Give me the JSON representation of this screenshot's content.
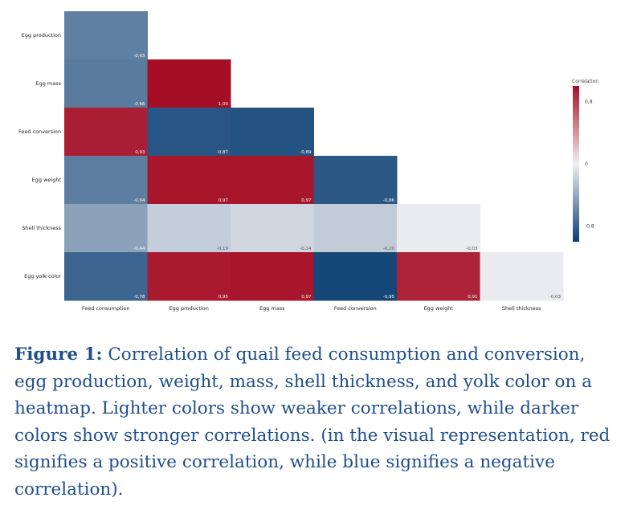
{
  "chart_data": {
    "type": "heatmap",
    "title": "",
    "row_labels": [
      "Egg production",
      "Egg mass",
      "Feed conversion",
      "Egg weight",
      "Shell thickness",
      "Egg yolk color"
    ],
    "column_labels": [
      "Feed consumption",
      "Egg production",
      "Egg mass",
      "Feed conversion",
      "Egg weight",
      "Shell thickness"
    ],
    "values": [
      [
        -0.63,
        null,
        null,
        null,
        null,
        null
      ],
      [
        -0.66,
        1.0,
        null,
        null,
        null,
        null
      ],
      [
        0.93,
        -0.87,
        -0.89,
        null,
        null,
        null
      ],
      [
        -0.64,
        0.97,
        0.97,
        -0.86,
        null,
        null
      ],
      [
        -0.44,
        -0.19,
        -0.14,
        -0.2,
        -0.03,
        null
      ],
      [
        -0.78,
        0.95,
        0.97,
        -0.95,
        0.91,
        -0.03
      ]
    ],
    "value_labels": [
      [
        "-0,63",
        null,
        null,
        null,
        null,
        null
      ],
      [
        "-0,66",
        "1,00",
        null,
        null,
        null,
        null
      ],
      [
        "0,93",
        "-0,87",
        "-0,89",
        null,
        null,
        null
      ],
      [
        "-0,64",
        "0,97",
        "0,97",
        "-0,86",
        null,
        null
      ],
      [
        "-0,44",
        "-0,19",
        "-0,14",
        "-0,20",
        "-0,03",
        null
      ],
      [
        "-0,78",
        "0,95",
        "0,97",
        "-0,95",
        "0,91",
        "-0,03"
      ]
    ],
    "color_scale": {
      "title": "Correlation",
      "ticks": [
        0.8,
        0,
        -0.8
      ],
      "tick_labels": [
        "0,8",
        "0",
        "-0,8"
      ],
      "range": [
        -1,
        1
      ],
      "positive_color": "#a50f25",
      "neutral_color": "#f0f0f2",
      "negative_color": "#0b3e73",
      "placement": "right"
    }
  },
  "caption": {
    "label": "Figure 1:",
    "text": " Correlation of quail feed consumption and conversion, egg production, weight, mass, shell thickness, and yolk color on a heatmap. Lighter colors show weaker correlations, while darker colors show stronger correlations. (in the visual representation, red signifies a positive correlation, while blue signifies a negative correlation)."
  },
  "colors": {
    "caption_text": "#1f4e8c"
  }
}
